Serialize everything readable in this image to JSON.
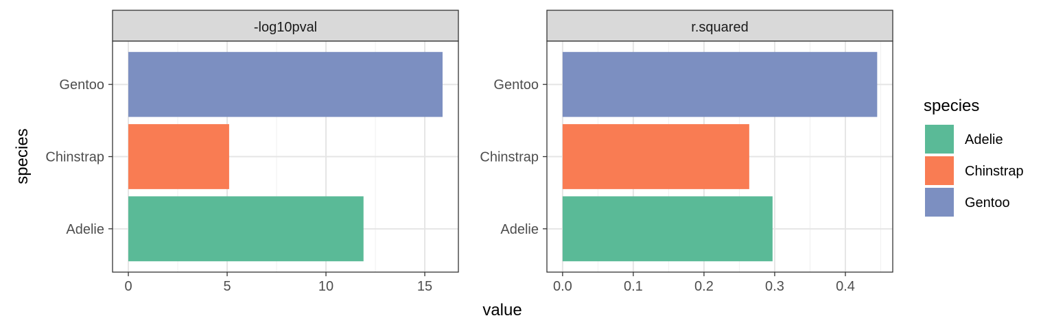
{
  "chart_data": {
    "type": "bar",
    "orientation": "horizontal",
    "x_title": "value",
    "y_title": "species",
    "categories": [
      "Adelie",
      "Chinstrap",
      "Gentoo"
    ],
    "colors": {
      "Adelie": "#5aba97",
      "Chinstrap": "#f97c53",
      "Gentoo": "#7c8fc1"
    },
    "grid": true,
    "legend": {
      "title": "species",
      "position": "right",
      "entries": [
        "Adelie",
        "Chinstrap",
        "Gentoo"
      ]
    },
    "panels": [
      {
        "label": "-log10pval",
        "values": {
          "Adelie": 11.9,
          "Chinstrap": 5.1,
          "Gentoo": 15.9
        },
        "xlim": [
          -0.8,
          16.7
        ],
        "ticks": [
          0,
          5,
          10,
          15
        ],
        "tick_labels": [
          "0",
          "5",
          "10",
          "15"
        ]
      },
      {
        "label": "r.squared",
        "values": {
          "Adelie": 0.297,
          "Chinstrap": 0.264,
          "Gentoo": 0.445
        },
        "xlim": [
          -0.0222,
          0.467
        ],
        "ticks": [
          0,
          0.1,
          0.2,
          0.3,
          0.4
        ],
        "tick_labels": [
          "0.0",
          "0.1",
          "0.2",
          "0.3",
          "0.4"
        ]
      }
    ]
  }
}
